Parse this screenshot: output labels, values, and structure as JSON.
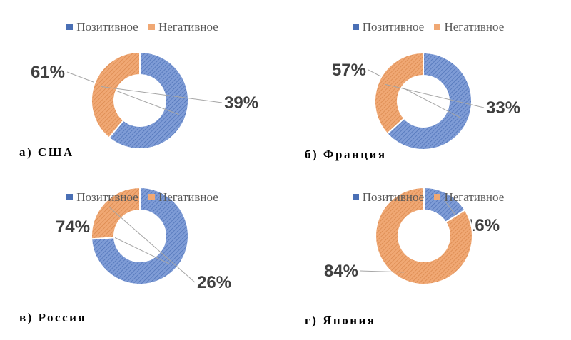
{
  "colors": {
    "positive": "#7f9cd6",
    "negative": "#f0a874",
    "positive_hatch": "#4a6fb5",
    "negative_hatch": "#d9864a"
  },
  "chart_data": [
    {
      "type": "pie",
      "donut": true,
      "label": "а) США",
      "legend": [
        "Позитивное",
        "Негативное"
      ],
      "slices": [
        {
          "name": "Позитивное",
          "value": 61,
          "label": "61%"
        },
        {
          "name": "Негативное",
          "value": 39,
          "label": "39%"
        }
      ]
    },
    {
      "type": "pie",
      "donut": true,
      "label": "б) Франция",
      "legend": [
        "Позитивное",
        "Негативное"
      ],
      "slices": [
        {
          "name": "Позитивное",
          "value": 57,
          "label": "57%"
        },
        {
          "name": "Негативное",
          "value": 33,
          "label": "33%"
        }
      ]
    },
    {
      "type": "pie",
      "donut": true,
      "label": "в) Россия",
      "legend": [
        "Позитивное",
        "Негативное"
      ],
      "slices": [
        {
          "name": "Позитивное",
          "value": 74,
          "label": "74%"
        },
        {
          "name": "Негативное",
          "value": 26,
          "label": "26%"
        }
      ]
    },
    {
      "type": "pie",
      "donut": true,
      "label": "г) Япония",
      "legend": [
        "Позитивное",
        "Негативное"
      ],
      "slices": [
        {
          "name": "Позитивное",
          "value": 16,
          "label": "16%"
        },
        {
          "name": "Негативное",
          "value": 84,
          "label": "84%"
        }
      ]
    }
  ]
}
